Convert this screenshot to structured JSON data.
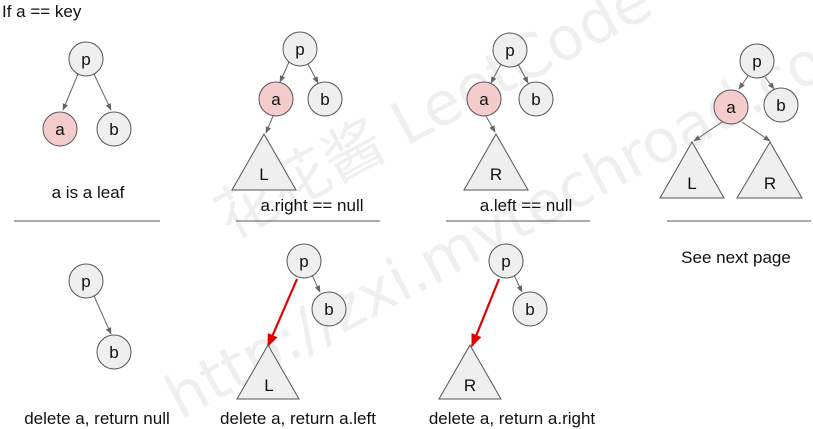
{
  "header": "If a == key",
  "labels": {
    "p": "p",
    "a": "a",
    "b": "b",
    "L": "L",
    "R": "R"
  },
  "cases": {
    "leaf": {
      "caption": "a is a leaf",
      "result": "delete a, return null"
    },
    "right_null": {
      "caption": "a.right == null",
      "result": "delete a, return a.left"
    },
    "left_null": {
      "caption": "a.left == null",
      "result": "delete a, return a.right"
    },
    "both": {
      "caption": "See next page"
    }
  },
  "watermark": {
    "line1": "花花酱 LeetCode",
    "line2": "http://zxi.mytechroad.com/blog/"
  },
  "colors": {
    "highlight_fill": "#f4cccc",
    "node_fill": "#efefef",
    "replace_arrow": "#e00000"
  }
}
